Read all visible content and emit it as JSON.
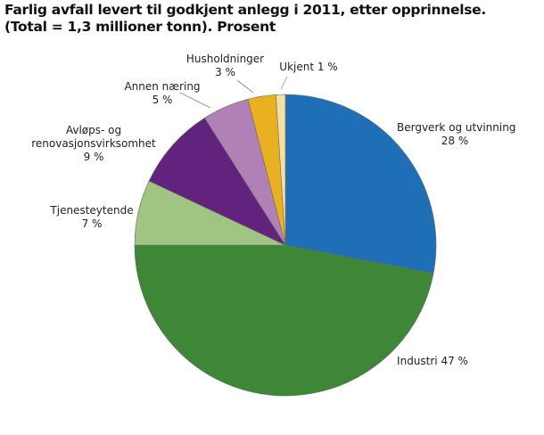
{
  "title": {
    "line1": "Farlig avfall levert til godkjent anlegg i 2011, etter opprinnelse.",
    "line2": "(Total = 1,3 millioner tonn). Prosent"
  },
  "chart_data": {
    "type": "pie",
    "title": "Farlig avfall levert til godkjent anlegg i 2011, etter opprinnelse. (Total = 1,3 millioner tonn). Prosent",
    "unit": "%",
    "start_angle": "12 o'clock, clockwise",
    "categories": [
      "Bergverk og utvinning",
      "Industri",
      "Tjenesteytende",
      "Avløps- og renovasjonsvirksomhet",
      "Annen næring",
      "Husholdninger",
      "Ukjent"
    ],
    "values": [
      28,
      47,
      7,
      9,
      5,
      3,
      1
    ],
    "colors": [
      "#1e6fb6",
      "#3d8736",
      "#a0c482",
      "#62237e",
      "#b180b5",
      "#e9b020",
      "#f5e0a4"
    ],
    "labels": [
      {
        "name": "Bergverk og utvinning",
        "value": "28 %"
      },
      {
        "name": "Industri",
        "value": "47 %"
      },
      {
        "name": "Tjenesteytende",
        "value": "7 %"
      },
      {
        "name": "Avløps- og renovasjonsvirksomhet",
        "value": "9 %"
      },
      {
        "name": "Annen næring",
        "value": "5 %"
      },
      {
        "name": "Husholdninger",
        "value": "3 %"
      },
      {
        "name": "Ukjent",
        "value": "1 %"
      }
    ]
  },
  "labels": {
    "bergverk": {
      "l1": "Bergverk og utvinning",
      "l2": "28 %"
    },
    "industri": {
      "l1": "Industri 47 %"
    },
    "tjeneste": {
      "l1": "Tjenesteytende",
      "l2": "7 %"
    },
    "avlops": {
      "l1": "Avløps- og",
      "l2": "renovasjonsvirksomhet",
      "l3": "9 %"
    },
    "annen": {
      "l1": "Annen næring",
      "l2": "5 %"
    },
    "hush": {
      "l1": "Husholdninger",
      "l2": "3 %"
    },
    "ukjent": {
      "l1": "Ukjent 1 %"
    }
  }
}
